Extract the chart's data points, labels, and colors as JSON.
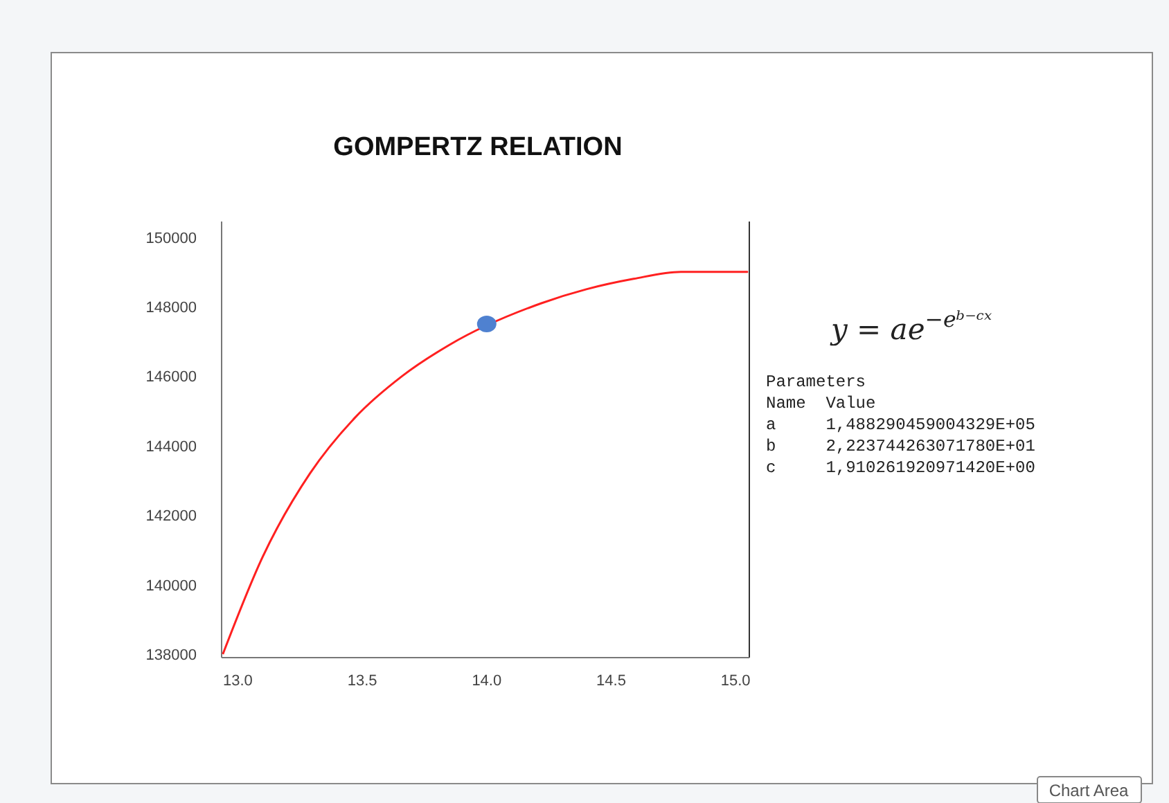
{
  "chart_data": {
    "type": "line",
    "title": "GOMPERTZ RELATION",
    "xlim": [
      12.935,
      15.055
    ],
    "xticks": [
      {
        "value": 13,
        "label": "13.0"
      },
      {
        "value": 13.5,
        "label": "13.5"
      },
      {
        "value": 14,
        "label": "14.0"
      },
      {
        "value": 14.5,
        "label": "14.5"
      },
      {
        "value": 15,
        "label": "15.0"
      }
    ],
    "ylim": [
      137900,
      150450
    ],
    "yticks": [
      138000,
      140000,
      142000,
      144000,
      146000,
      148000,
      150000
    ],
    "grid": false,
    "series": [
      {
        "color": "#ff2020",
        "marker": "none",
        "x": [
          12.94,
          13.1,
          13.29,
          13.47,
          13.66,
          13.85,
          14.22,
          14.4,
          14.59,
          14.78,
          14.93,
          15.05
        ],
        "values": [
          138000,
          140800,
          143200,
          144800,
          146000,
          146900,
          148100,
          148500,
          148800,
          149000,
          149000,
          149000
        ]
      },
      {
        "type": "scatter",
        "color": "#4f81d0",
        "marker": "circle",
        "x": [
          14.0
        ],
        "values": [
          147500
        ]
      }
    ],
    "annotations": [
      "y = ae$^{−eᵇ⁻ᶜˣ}$",
      "Parameters",
      "Name  Value",
      "a     1,488290459004329E+05",
      "b     2,223744263071780E+01",
      "c     1,910261920971420E+00",
      "Chart Area"
    ]
  }
}
